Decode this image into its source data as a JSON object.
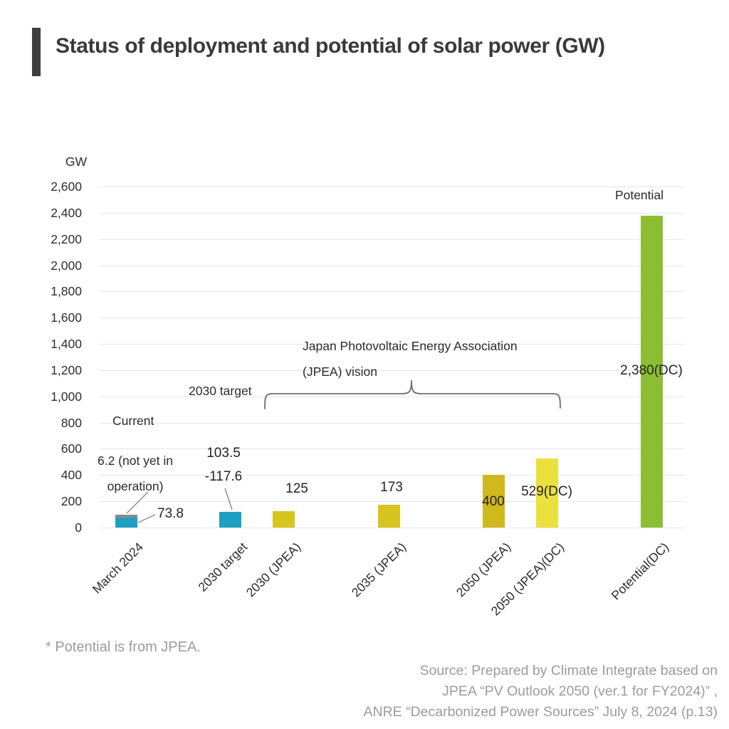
{
  "header": {
    "title": "Status of deployment and potential of solar power (GW)"
  },
  "chart_data": {
    "type": "bar",
    "title": "Status of deployment and potential of solar power (GW)",
    "unit": "GW",
    "ylim": [
      0,
      2600
    ],
    "ytick_step": 200,
    "grid": true,
    "legend": "none",
    "categories": [
      "March 2024",
      "2030 target",
      "2030 (JPEA)",
      "2035 (JPEA)",
      "2050 (JPEA)",
      "2050 (JPEA)(DC)",
      "Potential(DC)"
    ],
    "bars": [
      {
        "category": "March 2024",
        "value": 73.8,
        "not_yet_in_operation": 6.2,
        "color": "#1ea0c3",
        "cap_color": "#8a8a8a"
      },
      {
        "category": "2030 target",
        "value": 117.6,
        "range_low": 103.5,
        "range_high": 117.6,
        "color": "#1ea0c3"
      },
      {
        "category": "2030 (JPEA)",
        "value": 125,
        "color": "#d8c41e"
      },
      {
        "category": "2035 (JPEA)",
        "value": 173,
        "color": "#d8c41e"
      },
      {
        "category": "2050 (JPEA)",
        "value": 400,
        "color": "#d0b91e"
      },
      {
        "category": "2050 (JPEA)(DC)",
        "value": 529,
        "color": "#eae13c"
      },
      {
        "category": "Potential(DC)",
        "value": 2380,
        "color": "#8cbe33"
      }
    ]
  },
  "annotations": {
    "current": "Current",
    "not_yet_line1": "6.2 (not yet in",
    "not_yet_line2": "operation)",
    "bar1_value": "73.8",
    "target_2030": "2030 target",
    "target_range_line1": "103.5",
    "target_range_line2": "-117.6",
    "jpea_line1": "Japan Photovoltaic Energy Association",
    "jpea_line2": "(JPEA) vision",
    "potential": "Potential",
    "value_2030_jpea": "125",
    "value_2035_jpea": "173",
    "value_2050_jpea": "400",
    "value_2050_jpea_dc": "529(DC)",
    "value_potential": "2,380(DC)"
  },
  "footer": {
    "note": "* Potential is from JPEA.",
    "source_lines": [
      "Source: Prepared by Climate Integrate based on",
      "JPEA “PV Outlook 2050 (ver.1 for FY2024)” ,",
      "ANRE “Decarbonized Power Sources” July 8, 2024 (p.13)"
    ]
  }
}
